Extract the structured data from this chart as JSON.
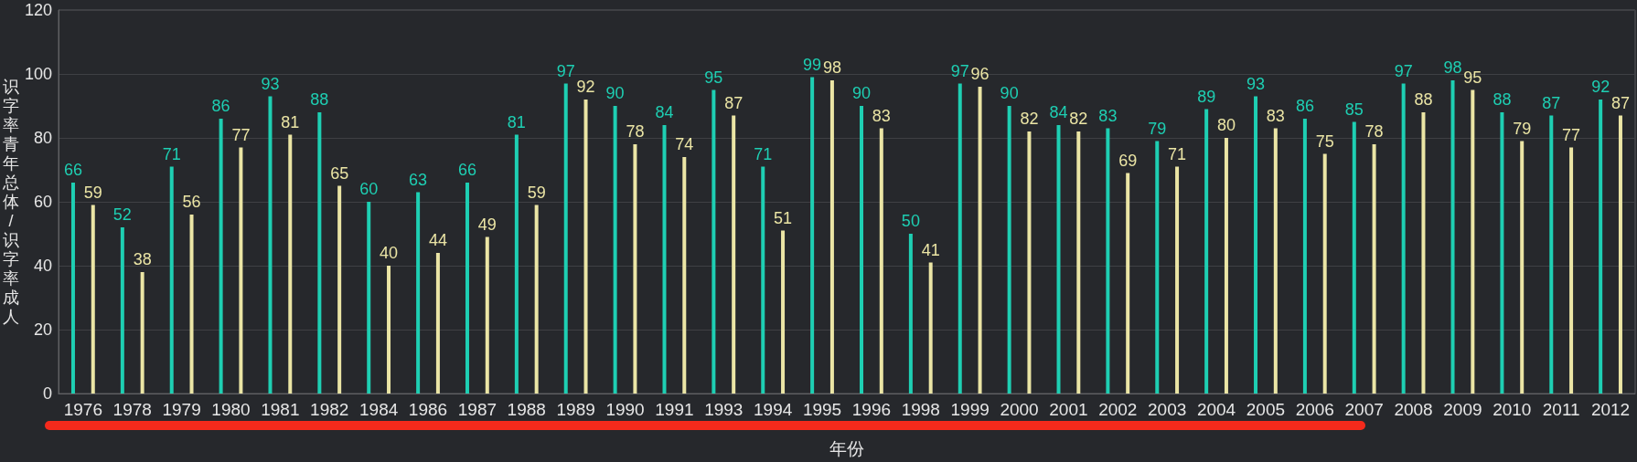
{
  "chart_data": {
    "type": "bar",
    "xlabel": "年份",
    "ylabel": "识字率青年总体/识字率成人",
    "categories": [
      "1976",
      "1978",
      "1979",
      "1980",
      "1981",
      "1982",
      "1984",
      "1986",
      "1987",
      "1988",
      "1989",
      "1990",
      "1991",
      "1993",
      "1994",
      "1995",
      "1996",
      "1998",
      "1999",
      "2000",
      "2001",
      "2002",
      "2003",
      "2004",
      "2005",
      "2006",
      "2007",
      "2008",
      "2009",
      "2010",
      "2011",
      "2012"
    ],
    "series": [
      {
        "color": "#1ecfb3",
        "values": [
          66,
          52,
          71,
          86,
          93,
          88,
          60,
          63,
          66,
          81,
          97,
          90,
          84,
          95,
          71,
          99,
          90,
          50,
          97,
          90,
          84,
          83,
          79,
          89,
          93,
          86,
          85,
          97,
          98,
          88,
          87,
          92
        ]
      },
      {
        "color": "#ebe5a5",
        "values": [
          59,
          38,
          56,
          77,
          81,
          65,
          40,
          44,
          49,
          59,
          92,
          78,
          74,
          87,
          51,
          98,
          83,
          41,
          96,
          82,
          82,
          69,
          71,
          80,
          83,
          75,
          78,
          88,
          95,
          79,
          77,
          87
        ]
      }
    ],
    "ylim": [
      0,
      120
    ],
    "yticks": [
      0,
      20,
      40,
      60,
      80,
      100,
      120
    ],
    "grid": "y",
    "data_labels": true
  }
}
